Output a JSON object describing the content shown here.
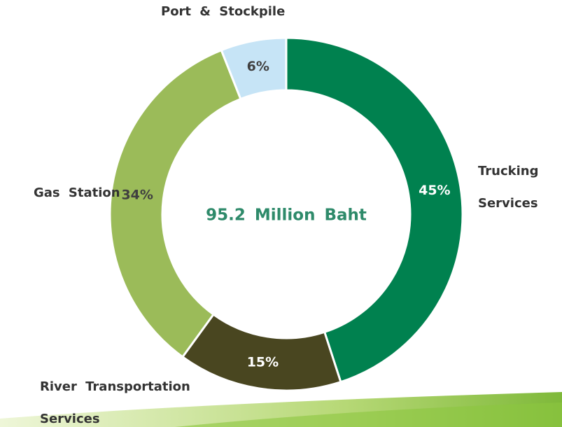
{
  "chart_data": {
    "type": "donut",
    "center_label": "95.2 Million Baht",
    "categories": [
      "Trucking Services",
      "River Transportation Services",
      "Gas Station",
      "Port & Stockpile"
    ],
    "values": [
      45,
      15,
      34,
      6
    ],
    "value_labels": [
      "45%",
      "15%",
      "34%",
      "6%"
    ],
    "colors": [
      "#00814f",
      "#494620",
      "#9bbb59",
      "#c6e4f6"
    ]
  }
}
